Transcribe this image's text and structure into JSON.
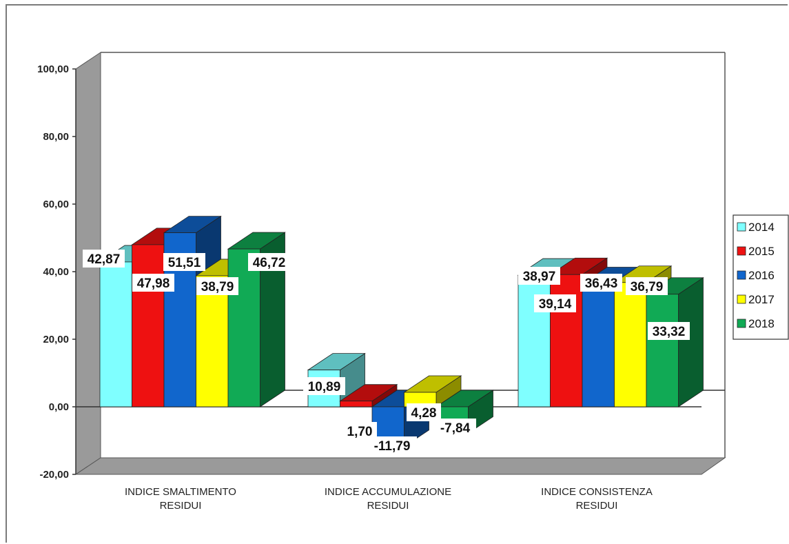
{
  "chart_data": {
    "type": "bar",
    "categories": [
      [
        "INDICE SMALTIMENTO",
        "RESIDUI"
      ],
      [
        "INDICE ACCUMULAZIONE",
        "RESIDUI"
      ],
      [
        "INDICE CONSISTENZA",
        "RESIDUI"
      ]
    ],
    "series": [
      {
        "name": "2014",
        "color": "#7fffff",
        "values": [
          42.87,
          10.89,
          38.97
        ]
      },
      {
        "name": "2015",
        "color": "#ee1111",
        "values": [
          47.98,
          1.7,
          39.14
        ]
      },
      {
        "name": "2016",
        "color": "#1166cc",
        "values": [
          51.51,
          -11.79,
          36.43
        ]
      },
      {
        "name": "2017",
        "color": "#ffff00",
        "values": [
          38.79,
          4.28,
          36.79
        ]
      },
      {
        "name": "2018",
        "color": "#11aa55",
        "values": [
          46.72,
          -7.84,
          33.32
        ]
      }
    ],
    "data_labels": [
      [
        "42,87",
        "10,89",
        "38,97"
      ],
      [
        "47,98",
        "1,70",
        "39,14"
      ],
      [
        "51,51",
        "-11,79",
        "36,43"
      ],
      [
        "38,79",
        "4,28",
        "36,79"
      ],
      [
        "46,72",
        "-7,84",
        "33,32"
      ]
    ],
    "y_ticks": [
      "100,00",
      "80,00",
      "60,00",
      "40,00",
      "20,00",
      "0,00",
      "-20,00"
    ],
    "y_tick_values": [
      100,
      80,
      60,
      40,
      20,
      0,
      -20
    ],
    "ylim": [
      -20,
      100
    ],
    "legend_position": "right",
    "grid": false,
    "style": "3d-clustered-column"
  }
}
